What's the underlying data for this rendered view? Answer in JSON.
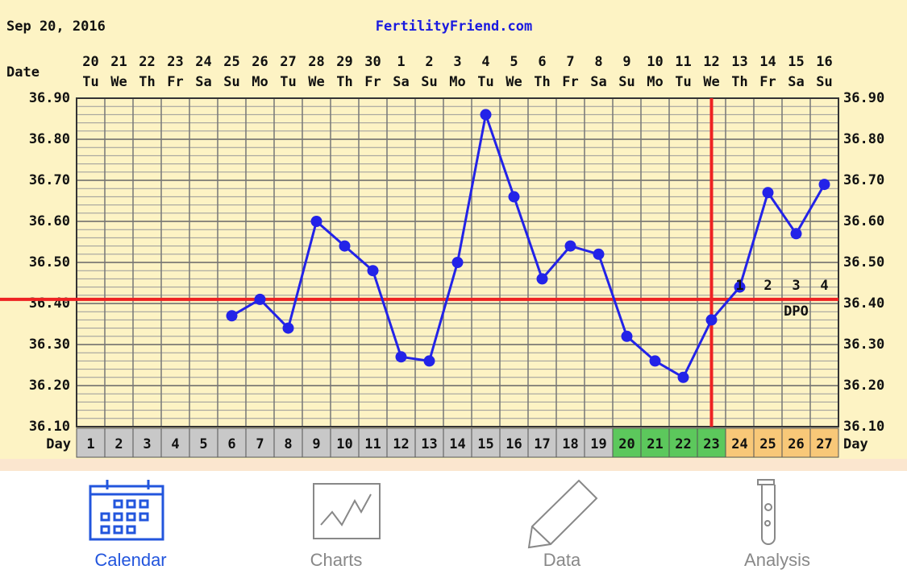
{
  "chart_data": {
    "type": "line",
    "date": "Sep 20, 2016",
    "site": "FertilityFriend.com",
    "date_label": "Date",
    "day_label": "Day",
    "categories": [
      "20",
      "21",
      "22",
      "23",
      "24",
      "25",
      "26",
      "27",
      "28",
      "29",
      "30",
      "1",
      "2",
      "3",
      "4",
      "5",
      "6",
      "7",
      "8",
      "9",
      "10",
      "11",
      "12",
      "13",
      "14",
      "15",
      "16"
    ],
    "weekdays": [
      "Tu",
      "We",
      "Th",
      "Fr",
      "Sa",
      "Su",
      "Mo",
      "Tu",
      "We",
      "Th",
      "Fr",
      "Sa",
      "Su",
      "Mo",
      "Tu",
      "We",
      "Th",
      "Fr",
      "Sa",
      "Su",
      "Mo",
      "Tu",
      "We",
      "Th",
      "Fr",
      "Sa",
      "Su"
    ],
    "cycle_days": [
      1,
      2,
      3,
      4,
      5,
      6,
      7,
      8,
      9,
      10,
      11,
      12,
      13,
      14,
      15,
      16,
      17,
      18,
      19,
      20,
      21,
      22,
      23,
      24,
      25,
      26,
      27
    ],
    "day_colors": [
      "#c8c8c8",
      "#c8c8c8",
      "#c8c8c8",
      "#c8c8c8",
      "#c8c8c8",
      "#c8c8c8",
      "#c8c8c8",
      "#c8c8c8",
      "#c8c8c8",
      "#c8c8c8",
      "#c8c8c8",
      "#c8c8c8",
      "#c8c8c8",
      "#c8c8c8",
      "#c8c8c8",
      "#c8c8c8",
      "#c8c8c8",
      "#c8c8c8",
      "#c8c8c8",
      "#5cc85c",
      "#5cc85c",
      "#5cc85c",
      "#5cc85c",
      "#f8c878",
      "#f8c878",
      "#f8c878",
      "#f8c878"
    ],
    "series": [
      {
        "color": "#2323e8",
        "values": [
          null,
          null,
          null,
          null,
          null,
          36.37,
          36.41,
          36.34,
          36.6,
          36.54,
          36.48,
          36.27,
          36.26,
          36.5,
          36.86,
          36.66,
          36.46,
          36.54,
          36.52,
          36.32,
          36.26,
          36.22,
          36.36,
          36.44,
          36.67,
          36.57,
          36.69
        ]
      }
    ],
    "ylim": [
      36.1,
      36.9
    ],
    "yticks": [
      {
        "value": 36.1,
        "label": "36.10"
      },
      {
        "value": 36.2,
        "label": "36.20"
      },
      {
        "value": 36.3,
        "label": "36.30"
      },
      {
        "value": 36.4,
        "label": "36.40"
      },
      {
        "value": 36.5,
        "label": "36.50"
      },
      {
        "value": 36.6,
        "label": "36.60"
      },
      {
        "value": 36.7,
        "label": "36.70"
      },
      {
        "value": 36.8,
        "label": "36.80"
      },
      {
        "value": 36.9,
        "label": "36.90"
      }
    ],
    "grid": true,
    "coverline": 36.41,
    "marker_line_color": "#ee2222",
    "ovulation_day": 23,
    "dpo_labels": [
      1,
      2,
      3,
      4
    ],
    "dpo_text": "DPO"
  },
  "tab_bar": {
    "tabs": [
      {
        "label": "Calendar",
        "selected": true
      },
      {
        "label": "Charts",
        "selected": false
      },
      {
        "label": "Data",
        "selected": false
      },
      {
        "label": "Analysis",
        "selected": false
      }
    ]
  }
}
